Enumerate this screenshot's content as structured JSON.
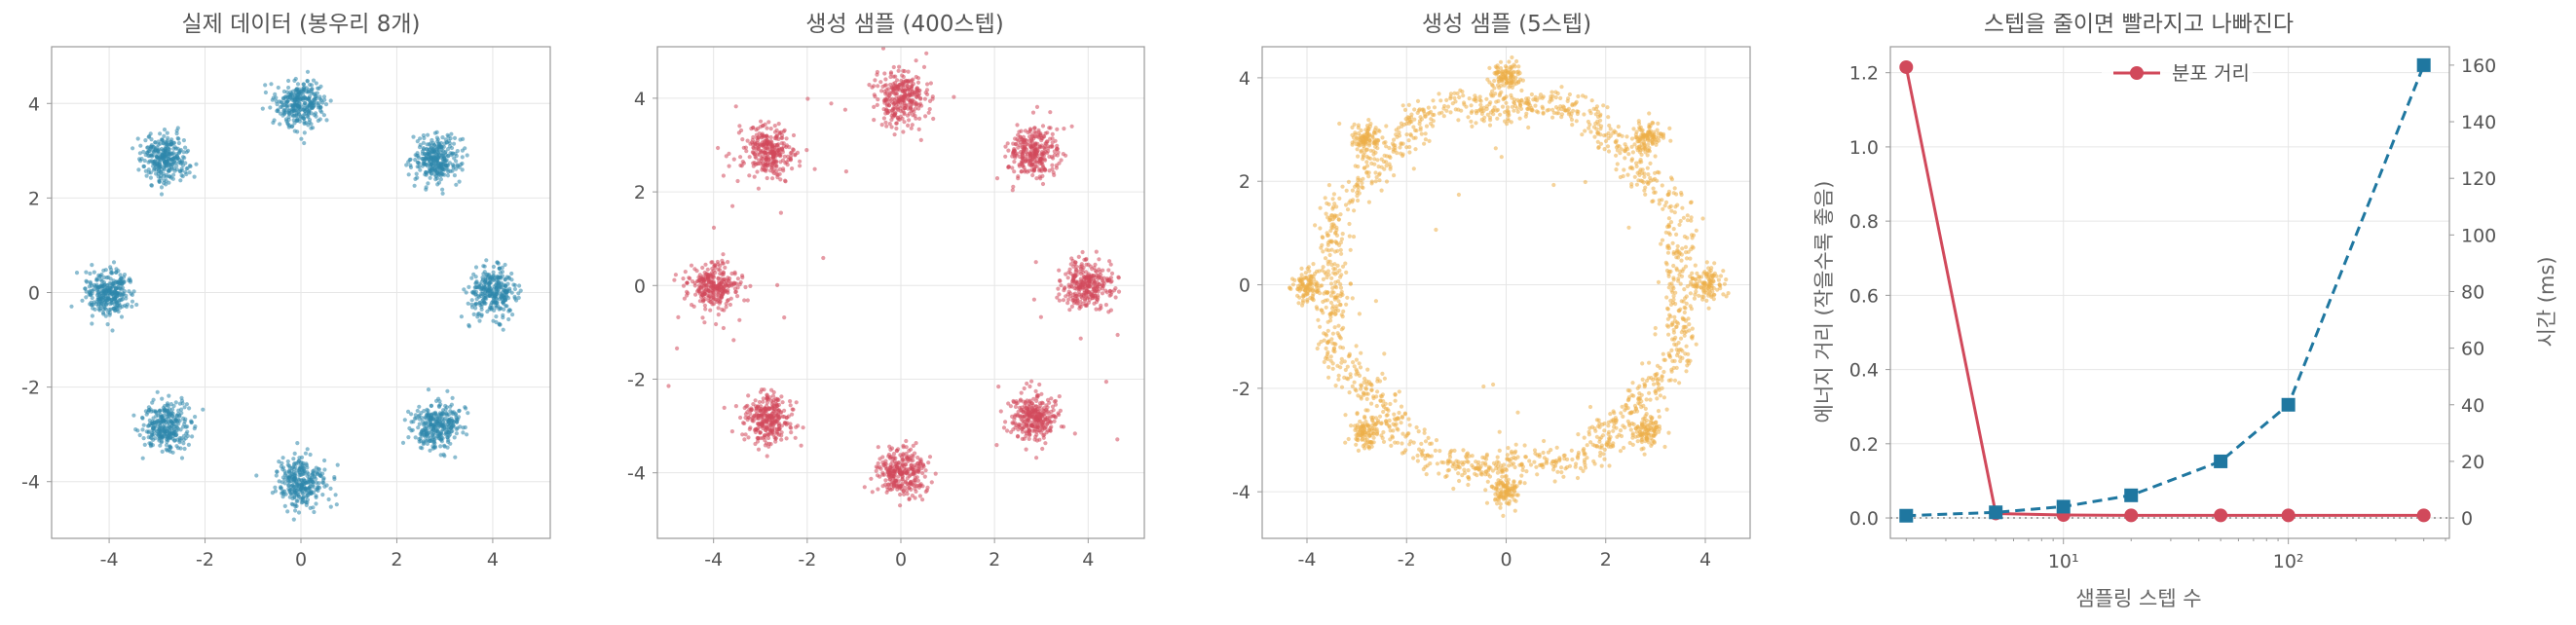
{
  "colors": {
    "real": "#2e86ab",
    "gen400": "#d1495b",
    "gen5": "#edae49",
    "distance": "#d1495b",
    "time": "#1f77a0",
    "text": "#555555",
    "grid": "#e6e6e6"
  },
  "chart_data": [
    {
      "type": "scatter",
      "title": "실제 데이터 (봉우리 8개)",
      "xlim": [
        -5.2,
        5.2
      ],
      "ylim": [
        -5.2,
        5.2
      ],
      "xticks": [
        -4,
        -2,
        0,
        2,
        4
      ],
      "yticks": [
        -4,
        -2,
        0,
        2,
        4
      ],
      "grid": true,
      "series": [
        {
          "color": "#2e86ab",
          "pattern": "gaussian mixture",
          "centers": [
            [
              4,
              0
            ],
            [
              2.83,
              2.83
            ],
            [
              0,
              4
            ],
            [
              -2.83,
              2.83
            ],
            [
              -4,
              0
            ],
            [
              -2.83,
              -2.83
            ],
            [
              0,
              -4
            ],
            [
              2.83,
              -2.83
            ]
          ],
          "std": 0.25,
          "points_per_center": 300
        }
      ]
    },
    {
      "type": "scatter",
      "title": "생성 샘플 (400스텝)",
      "xlim": [
        -5.2,
        5.2
      ],
      "ylim": [
        -5.4,
        5.1
      ],
      "xticks": [
        -4,
        -2,
        0,
        2,
        4
      ],
      "yticks": [
        -4,
        -2,
        0,
        2,
        4
      ],
      "grid": true,
      "series": [
        {
          "color": "#d1495b",
          "pattern": "gaussian mixture",
          "centers": [
            [
              4,
              0
            ],
            [
              2.83,
              2.83
            ],
            [
              0,
              4
            ],
            [
              -2.83,
              2.83
            ],
            [
              -4,
              0
            ],
            [
              -2.83,
              -2.83
            ],
            [
              0,
              -4
            ],
            [
              2.83,
              -2.83
            ]
          ],
          "std": 0.27,
          "points_per_center": 290,
          "outliers": 60
        }
      ]
    },
    {
      "type": "scatter",
      "title": "생성 샘플 (5스텝)",
      "xlim": [
        -4.9,
        4.9
      ],
      "ylim": [
        -4.9,
        4.6
      ],
      "xticks": [
        -4,
        -2,
        0,
        2,
        4
      ],
      "yticks": [
        -4,
        -2,
        0,
        2,
        4
      ],
      "grid": true,
      "series": [
        {
          "color": "#edae49",
          "pattern": "ring with clusters",
          "centers": [
            [
              4,
              0
            ],
            [
              2.83,
              2.83
            ],
            [
              0,
              4
            ],
            [
              -2.83,
              2.83
            ],
            [
              -4,
              0
            ],
            [
              -2.83,
              -2.83
            ],
            [
              0,
              -4
            ],
            [
              2.83,
              -2.83
            ]
          ],
          "ring_radius": 3.5,
          "cluster_points": 110,
          "ring_points": 1500
        }
      ]
    },
    {
      "type": "line",
      "title": "스텝을 줄이면 빨라지고 나빠진다",
      "xlabel": "샘플링 스텝 수",
      "ylabel": "에너지 거리 (작을수록 좋음)",
      "y2label": "시간 (ms)",
      "xscale": "log",
      "xlim": [
        1.7,
        520
      ],
      "ylim": [
        -0.055,
        1.27
      ],
      "y2lim": [
        -7.2,
        166.5
      ],
      "xticks": [
        {
          "value": 10,
          "label": "10¹"
        },
        {
          "value": 100,
          "label": "10²"
        }
      ],
      "yticks": [
        "0.0",
        "0.2",
        "0.4",
        "0.6",
        "0.8",
        "1.0",
        "1.2"
      ],
      "y2ticks": [
        "0",
        "20",
        "40",
        "60",
        "80",
        "100",
        "120",
        "140",
        "160"
      ],
      "grid": true,
      "legend": {
        "placement": "top-center",
        "entries": [
          "분포 거리"
        ]
      },
      "x": [
        2,
        5,
        10,
        20,
        50,
        100,
        400
      ],
      "series": [
        {
          "name": "분포 거리",
          "axis": "left",
          "style": "solid",
          "marker": "circle",
          "color": "#d1495b",
          "values": [
            1.215,
            0.012,
            0.008,
            0.007,
            0.007,
            0.007,
            0.007
          ]
        },
        {
          "axis": "right",
          "style": "dashed",
          "marker": "square",
          "color": "#1f77a0",
          "values": [
            0.8,
            2,
            4,
            8,
            20,
            40,
            160
          ]
        }
      ],
      "reference_line": {
        "axis": "left",
        "value": 0.0,
        "style": "dotted"
      }
    }
  ]
}
